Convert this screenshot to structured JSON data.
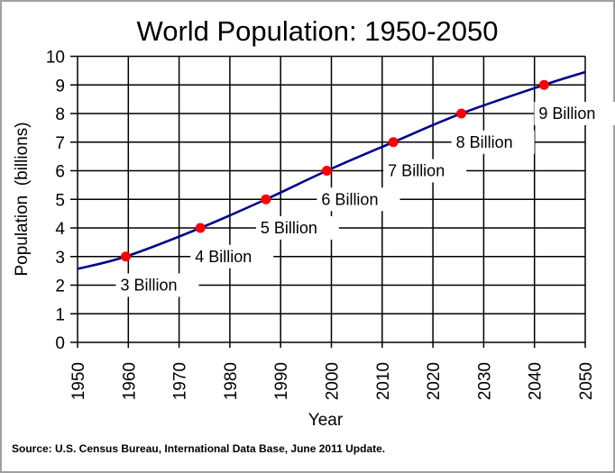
{
  "chart_data": {
    "type": "line",
    "title": "World Population: 1950-2050",
    "xlabel": "Year",
    "ylabel": "Population  (billions)",
    "xlim": [
      1950,
      2050
    ],
    "ylim": [
      0,
      10
    ],
    "x_ticks": [
      "1950",
      "1960",
      "1970",
      "1980",
      "1990",
      "2000",
      "2010",
      "2020",
      "2030",
      "2040",
      "2050"
    ],
    "y_ticks": [
      "0",
      "1",
      "2",
      "3",
      "4",
      "5",
      "6",
      "7",
      "8",
      "9",
      "10"
    ],
    "grid": true,
    "line_color": "#00008b",
    "marker_color": "#ff0000",
    "series": [
      {
        "x": [
          1950,
          1959.5,
          1974.2,
          1987.1,
          1999.1,
          2012.2,
          2025.6,
          2041.9,
          2050
        ],
        "y": [
          2.57,
          3,
          4,
          5,
          6,
          7,
          8,
          9,
          9.45
        ]
      }
    ],
    "milestones": [
      {
        "year": 1959.5,
        "value": 3,
        "label": "3 Billion"
      },
      {
        "year": 1974.2,
        "value": 4,
        "label": "4 Billion"
      },
      {
        "year": 1987.1,
        "value": 5,
        "label": "5 Billion"
      },
      {
        "year": 1999.1,
        "value": 6,
        "label": "6 Billion"
      },
      {
        "year": 2012.2,
        "value": 7,
        "label": "7 Billion"
      },
      {
        "year": 2025.6,
        "value": 8,
        "label": "8 Billion"
      },
      {
        "year": 2041.9,
        "value": 9,
        "label": "9 Billion"
      }
    ],
    "source": "Source: U.S. Census Bureau, International Data Base, June 2011 Update."
  }
}
